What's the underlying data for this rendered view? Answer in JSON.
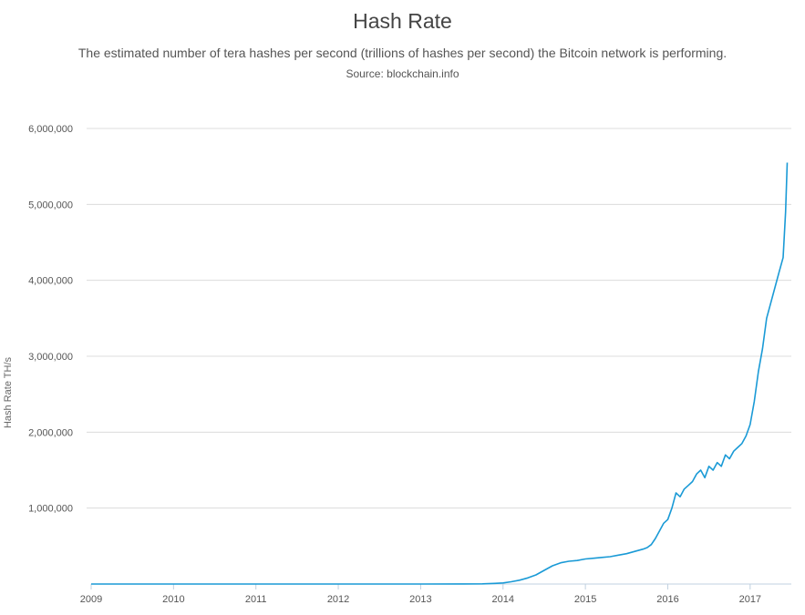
{
  "chart_data": {
    "type": "line",
    "title": "Hash Rate",
    "subtitle": "The estimated number of tera hashes per second (trillions of hashes per second) the Bitcoin network is performing.",
    "source": "Source: blockchain.info",
    "xlabel": "",
    "ylabel": "Hash Rate TH/s",
    "xlim": [
      2009,
      2017.5
    ],
    "ylim": [
      0,
      6000000
    ],
    "x_ticks": [
      "2009",
      "2010",
      "2011",
      "2012",
      "2013",
      "2014",
      "2015",
      "2016",
      "2017"
    ],
    "y_ticks": [
      {
        "value": 1000000,
        "label": "1,000,000"
      },
      {
        "value": 2000000,
        "label": "2,000,000"
      },
      {
        "value": 3000000,
        "label": "3,000,000"
      },
      {
        "value": 4000000,
        "label": "4,000,000"
      },
      {
        "value": 5000000,
        "label": "5,000,000"
      },
      {
        "value": 6000000,
        "label": "6,000,000"
      }
    ],
    "grid": true,
    "line_color": "#1a9ad6",
    "series": [
      {
        "x": [
          2009.0,
          2011.0,
          2013.0,
          2013.5,
          2013.75,
          2013.9,
          2014.0,
          2014.1,
          2014.2,
          2014.3,
          2014.4,
          2014.5,
          2014.6,
          2014.7,
          2014.8,
          2014.9,
          2015.0,
          2015.1,
          2015.2,
          2015.3,
          2015.4,
          2015.5,
          2015.6,
          2015.7,
          2015.75,
          2015.8,
          2015.85,
          2015.9,
          2015.95,
          2016.0,
          2016.05,
          2016.1,
          2016.15,
          2016.2,
          2016.25,
          2016.3,
          2016.35,
          2016.4,
          2016.45,
          2016.5,
          2016.55,
          2016.6,
          2016.65,
          2016.7,
          2016.75,
          2016.8,
          2016.85,
          2016.9,
          2016.95,
          2017.0,
          2017.05,
          2017.1,
          2017.15,
          2017.2,
          2017.25,
          2017.3,
          2017.35,
          2017.4,
          2017.43,
          2017.45
        ],
        "y": [
          0,
          0,
          0,
          1000,
          3000,
          8000,
          15000,
          30000,
          50000,
          80000,
          120000,
          180000,
          240000,
          280000,
          300000,
          310000,
          330000,
          340000,
          350000,
          360000,
          380000,
          400000,
          430000,
          460000,
          480000,
          520000,
          600000,
          700000,
          800000,
          850000,
          1000000,
          1200000,
          1150000,
          1250000,
          1300000,
          1350000,
          1450000,
          1500000,
          1400000,
          1550000,
          1500000,
          1600000,
          1550000,
          1700000,
          1650000,
          1750000,
          1800000,
          1850000,
          1950000,
          2100000,
          2400000,
          2800000,
          3100000,
          3500000,
          3700000,
          3900000,
          4100000,
          4300000,
          4900000,
          5550000
        ]
      }
    ]
  }
}
